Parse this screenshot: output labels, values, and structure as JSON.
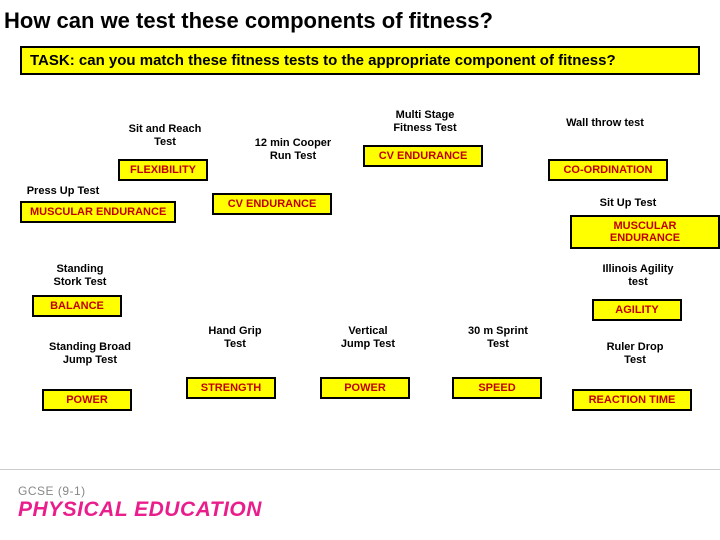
{
  "title": "How can we test these components of fitness?",
  "task": "TASK: can you match these fitness tests to the appropriate component of fitness?",
  "footer": {
    "sub": "GCSE (9-1)",
    "main": "PHYSICAL EDUCATION"
  },
  "items": {
    "sit_reach": {
      "test": "Sit and Reach\nTest",
      "comp": "FLEXIBILITY"
    },
    "press_up": {
      "test": "Press Up Test",
      "comp": "MUSCULAR ENDURANCE"
    },
    "cooper": {
      "test": "12 min Cooper\nRun Test",
      "comp": "CV ENDURANCE"
    },
    "multistage": {
      "test": "Multi Stage\nFitness Test",
      "comp": "CV ENDURANCE"
    },
    "wall_throw": {
      "test": "Wall throw test",
      "comp": "CO-ORDINATION"
    },
    "sit_up": {
      "test": "Sit Up Test",
      "comp": "MUSCULAR ENDURANCE"
    },
    "stork": {
      "test": "Standing\nStork Test",
      "comp": "BALANCE"
    },
    "illinois": {
      "test": "Illinois Agility\ntest",
      "comp": "AGILITY"
    },
    "broad_jump": {
      "test": "Standing Broad\nJump Test",
      "comp": "POWER"
    },
    "hand_grip": {
      "test": "Hand Grip\nTest",
      "comp": "STRENGTH"
    },
    "vertical_jump": {
      "test": "Vertical\nJump Test",
      "comp": "POWER"
    },
    "sprint": {
      "test": "30 m Sprint\nTest",
      "comp": "SPEED"
    },
    "ruler": {
      "test": "Ruler Drop\nTest",
      "comp": "REACTION TIME"
    }
  }
}
